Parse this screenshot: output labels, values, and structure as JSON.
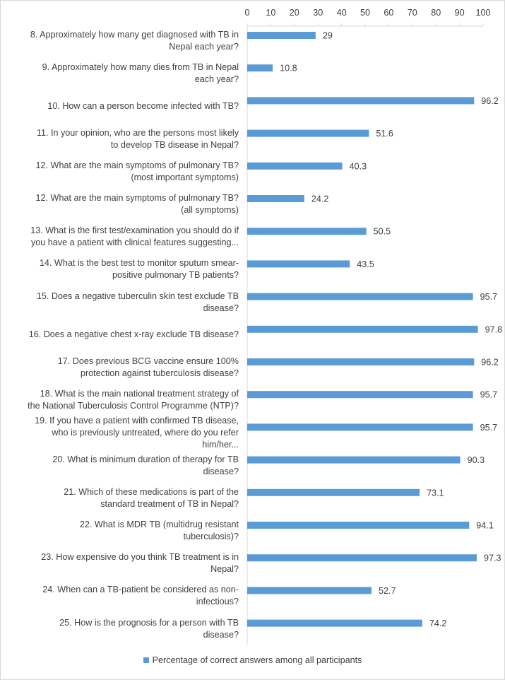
{
  "chart_data": {
    "type": "bar",
    "orientation": "horizontal",
    "categories": [
      "8. Approximately how many get diagnosed with TB in Nepal each year?",
      "9. Approximately how many dies from TB in Nepal each year?",
      "10. How can a person become infected with TB?",
      "11. In your opinion, who are the persons most likely to develop TB disease in Nepal?",
      "12. What are the main symptoms of pulmonary TB? (most important symptoms)",
      "12. What are the main symptoms of pulmonary TB? (all symptoms)",
      "13. What is the first test/examination you should do if you have a patient with clinical features suggesting...",
      "14. What is the best test to monitor sputum smear-positive pulmonary TB patients?",
      "15. Does a negative tuberculin skin test exclude TB disease?",
      "16. Does a negative chest x-ray exclude TB disease?",
      "17. Does previous BCG vaccine ensure 100% protection against tuberculosis disease?",
      "18. What is the main national treatment strategy of the National Tuberculosis Control Programme (NTP)?",
      "19. If you have a patient with confirmed TB disease, who is previously untreated, where do you refer him/her...",
      "20. What is minimum duration of therapy for TB disease?",
      "21. Which of these medications is part of the standard treatment of TB in Nepal?",
      "22. What is MDR TB (multidrug resistant tuberculosis)?",
      "23. How expensive do you think TB treatment is in Nepal?",
      "24. When can a TB-patient be considered as non-infectious?",
      "25. How is the prognosis for a person with TB disease?"
    ],
    "series": [
      {
        "name": "Percentage of correct answers among all participants",
        "values": [
          29,
          10.8,
          96.2,
          51.6,
          40.3,
          24.2,
          50.5,
          43.5,
          95.7,
          97.8,
          96.2,
          95.7,
          95.7,
          90.3,
          73.1,
          94.1,
          97.3,
          52.7,
          74.2
        ],
        "labels": [
          "29",
          "10.8",
          "96.2",
          "51.6",
          "40.3",
          "24.2",
          "50.5",
          "43.5",
          "95.7",
          "97.8",
          "96.2",
          "95.7",
          "95.7",
          "90.3",
          "73.1",
          "94.1",
          "97.3",
          "52.7",
          "74.2"
        ]
      }
    ],
    "xlim": [
      0,
      100
    ],
    "x_ticks": [
      "0",
      "10",
      "20",
      "30",
      "40",
      "50",
      "60",
      "70",
      "80",
      "90",
      "100"
    ],
    "axis_position": "top",
    "legend_position": "bottom",
    "grid": false,
    "title": "",
    "xlabel": "",
    "ylabel": "",
    "bar_color": "#5b9bd5",
    "text_color": "#404040",
    "axis_color": "#d9d9d9"
  }
}
